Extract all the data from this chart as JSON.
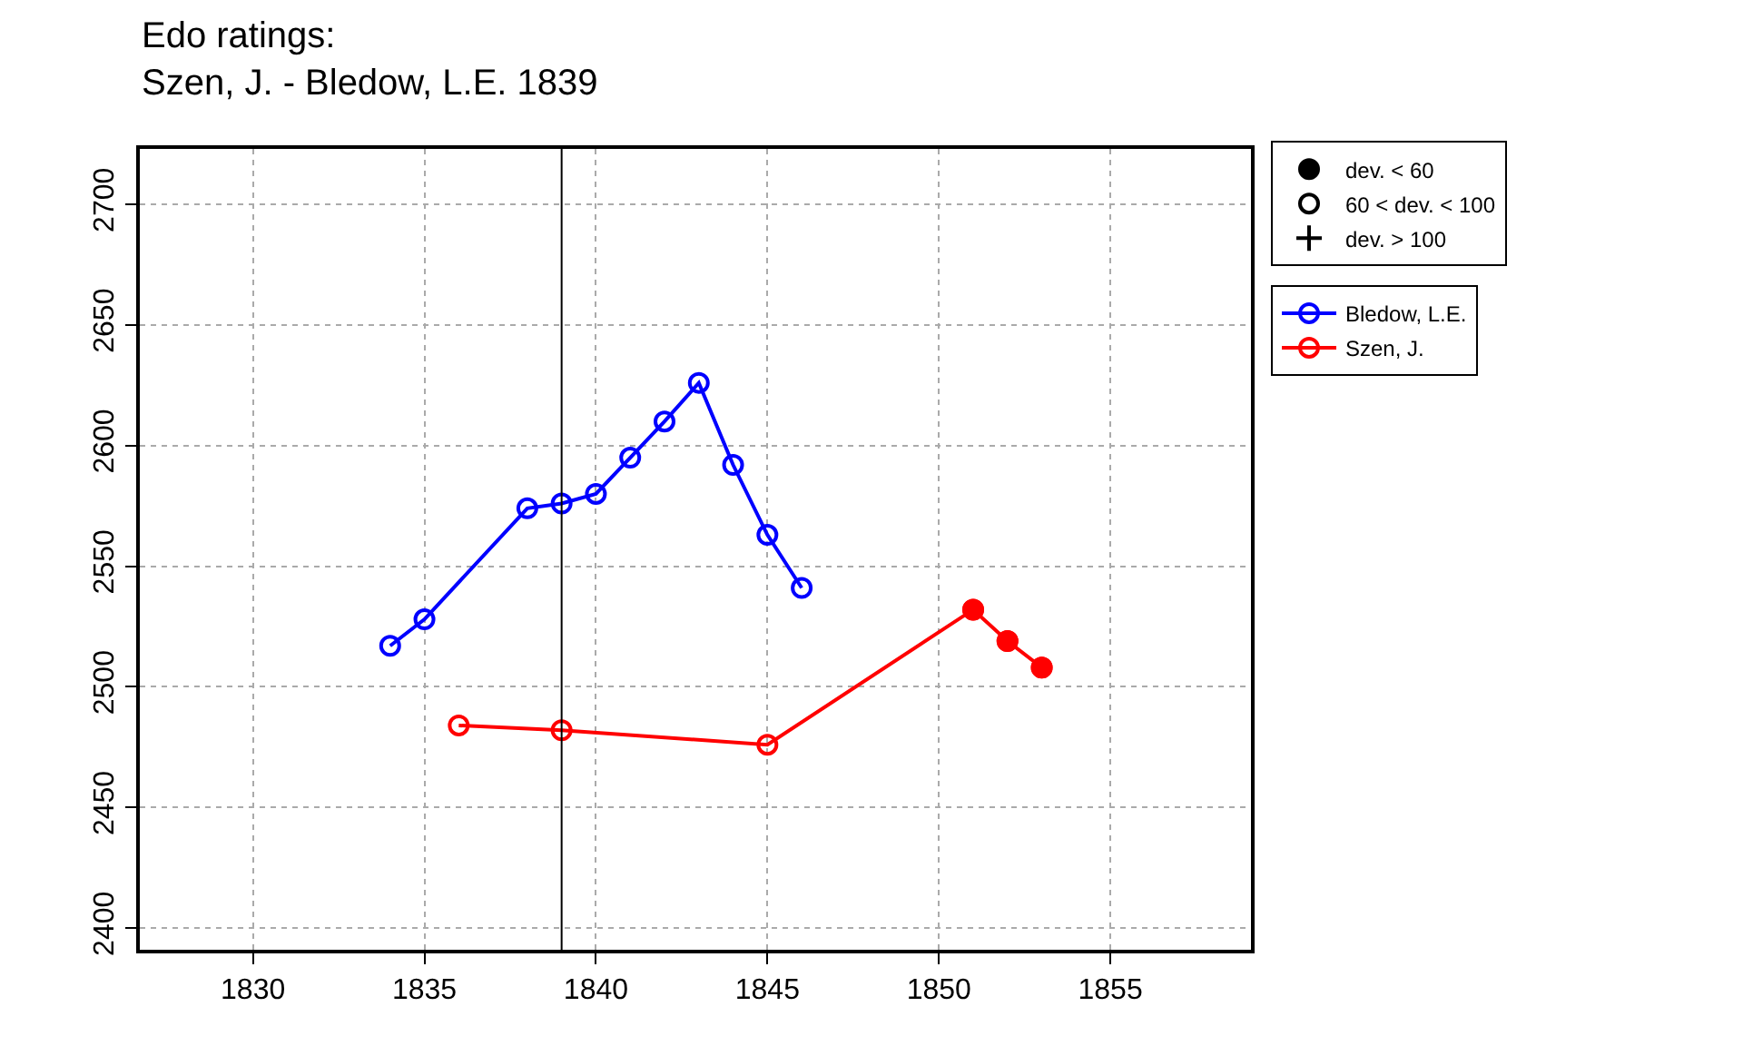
{
  "chart_data": {
    "type": "line",
    "title": "Edo ratings:\nSzen, J. - Bledow, L.E. 1839",
    "xlim": [
      1826.7,
      1859.1
    ],
    "xticks": [
      1830,
      1835,
      1840,
      1845,
      1850,
      1855
    ],
    "ylim": [
      2391,
      2723
    ],
    "yticks": [
      2400,
      2450,
      2500,
      2550,
      2600,
      2650,
      2700
    ],
    "grid": true,
    "legend": "top right",
    "line_style": "solid",
    "ref_lines": [
      {
        "axis": "x",
        "value": 1839,
        "label": null,
        "color": "#000000"
      }
    ],
    "series": [
      {
        "name": "Bledow, L.E.",
        "color": "#0000ff",
        "marker": "circle-open",
        "x": [
          1834,
          1835,
          1838,
          1839,
          1840,
          1841,
          1842,
          1843,
          1844,
          1845,
          1846
        ],
        "values": [
          2517,
          2528,
          2574,
          2576,
          2580,
          2595,
          2610,
          2626,
          2592,
          2563,
          2541
        ]
      },
      {
        "name": "Szen, J.",
        "color": "#ff0000",
        "marker": "circle-open",
        "x": [
          1836,
          1839,
          1845,
          1851,
          1852,
          1853
        ],
        "values": [
          2484,
          2482,
          2476,
          2532,
          2519,
          2508
        ]
      },
      {
        "type": "scatter",
        "color": "#ff0000",
        "marker": "circle",
        "x": [
          1851,
          1852,
          1853
        ],
        "values": [
          2532,
          2519,
          2508
        ]
      },
      {
        "type": "scatter",
        "name": "dev. < 60",
        "color": "#000000",
        "marker": "circle"
      },
      {
        "type": "scatter",
        "name": "60 < dev. < 100",
        "color": "#000000",
        "marker": "circle-open"
      },
      {
        "type": "scatter",
        "name": "dev. > 100",
        "color": "#000000",
        "marker": "cross"
      }
    ]
  }
}
